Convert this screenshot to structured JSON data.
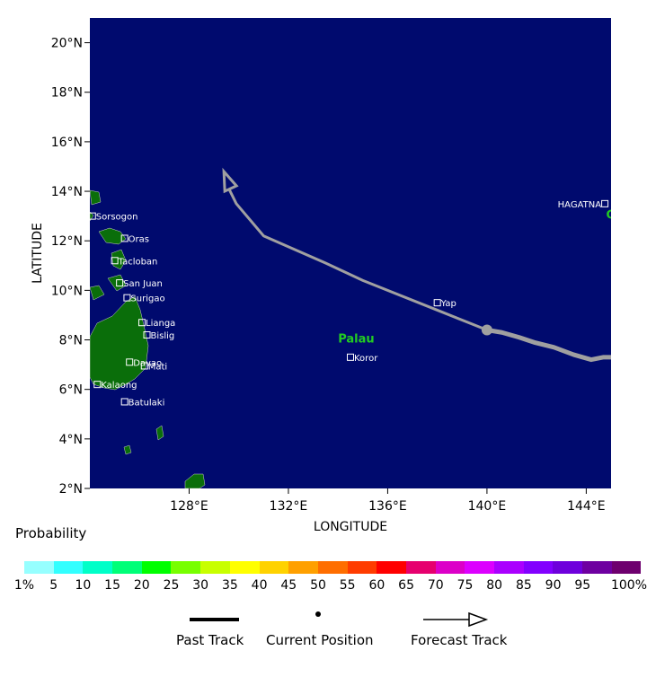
{
  "axes": {
    "xlabel": "LONGITUDE",
    "ylabel": "LATITUDE",
    "lon_range": [
      124.0,
      145.0
    ],
    "lat_range": [
      2.0,
      21.0
    ],
    "lon_ticks": [
      "128°E",
      "132°E",
      "136°E",
      "140°E",
      "144°E"
    ],
    "lon_tick_values": [
      128,
      132,
      136,
      140,
      144
    ],
    "lat_ticks": [
      "2°N",
      "4°N",
      "6°N",
      "8°N",
      "10°N",
      "12°N",
      "14°N",
      "16°N",
      "18°N",
      "20°N"
    ],
    "lat_tick_values": [
      2,
      4,
      6,
      8,
      10,
      12,
      14,
      16,
      18,
      20
    ]
  },
  "colors": {
    "ocean": "#000a6e",
    "land": "#0a6e0a",
    "track": "#a0a0a0",
    "places": "#ffffff",
    "regions": "#22cc22"
  },
  "places": [
    {
      "name": "Sorsogon",
      "lon": 124.1,
      "lat": 13.0
    },
    {
      "name": "Oras",
      "lon": 125.4,
      "lat": 12.1
    },
    {
      "name": "Tacloban",
      "lon": 125.0,
      "lat": 11.2
    },
    {
      "name": "San Juan",
      "lon": 125.2,
      "lat": 10.3
    },
    {
      "name": "Surigao",
      "lon": 125.5,
      "lat": 9.7
    },
    {
      "name": "Lianga",
      "lon": 126.1,
      "lat": 8.7
    },
    {
      "name": "Bislig",
      "lon": 126.3,
      "lat": 8.2
    },
    {
      "name": "Davao",
      "lon": 125.6,
      "lat": 7.1
    },
    {
      "name": "Mati",
      "lon": 126.2,
      "lat": 6.95
    },
    {
      "name": "Kalaong",
      "lon": 124.3,
      "lat": 6.2
    },
    {
      "name": "Batulaki",
      "lon": 125.4,
      "lat": 5.5
    },
    {
      "name": "Yap",
      "lon": 138.0,
      "lat": 9.5
    },
    {
      "name": "Koror",
      "lon": 134.5,
      "lat": 7.3
    },
    {
      "name": "HAGATNA",
      "lon": 144.75,
      "lat": 13.5
    }
  ],
  "regions": [
    {
      "name": "Palau",
      "lon": 134.0,
      "lat": 7.9
    },
    {
      "name": "Guam",
      "lon": 144.8,
      "lat": 12.9
    }
  ],
  "track": {
    "past": [
      [
        145.0,
        7.3
      ],
      [
        144.7,
        7.3
      ],
      [
        144.2,
        7.2
      ],
      [
        143.5,
        7.4
      ],
      [
        142.7,
        7.7
      ],
      [
        141.9,
        7.9
      ],
      [
        141.3,
        8.1
      ],
      [
        140.6,
        8.3
      ],
      [
        140.0,
        8.4
      ]
    ],
    "current": [
      140.0,
      8.4
    ],
    "forecast": [
      [
        140.0,
        8.4
      ],
      [
        138.0,
        9.2
      ],
      [
        135.0,
        10.4
      ],
      [
        133.5,
        11.1
      ],
      [
        131.0,
        12.2
      ],
      [
        129.9,
        13.5
      ],
      [
        129.4,
        14.8
      ]
    ]
  },
  "probability": {
    "title": "Probability",
    "colors": [
      "#96ffff",
      "#32ffff",
      "#00ffc8",
      "#00ff78",
      "#00ff00",
      "#78ff00",
      "#c8ff00",
      "#ffff00",
      "#ffd200",
      "#ffa000",
      "#ff6e00",
      "#ff3c00",
      "#ff0000",
      "#e6006e",
      "#dc00c8",
      "#dc00ff",
      "#aa00ff",
      "#8200ff",
      "#6e00dc",
      "#6e00a0",
      "#6e006e"
    ],
    "labels": [
      "1%",
      "5",
      "10",
      "15",
      "20",
      "25",
      "30",
      "35",
      "40",
      "45",
      "50",
      "55",
      "60",
      "65",
      "70",
      "75",
      "80",
      "85",
      "90",
      "95",
      "100%"
    ]
  },
  "legend": {
    "past": "Past Track",
    "current": "Current Position",
    "forecast": "Forecast Track"
  }
}
